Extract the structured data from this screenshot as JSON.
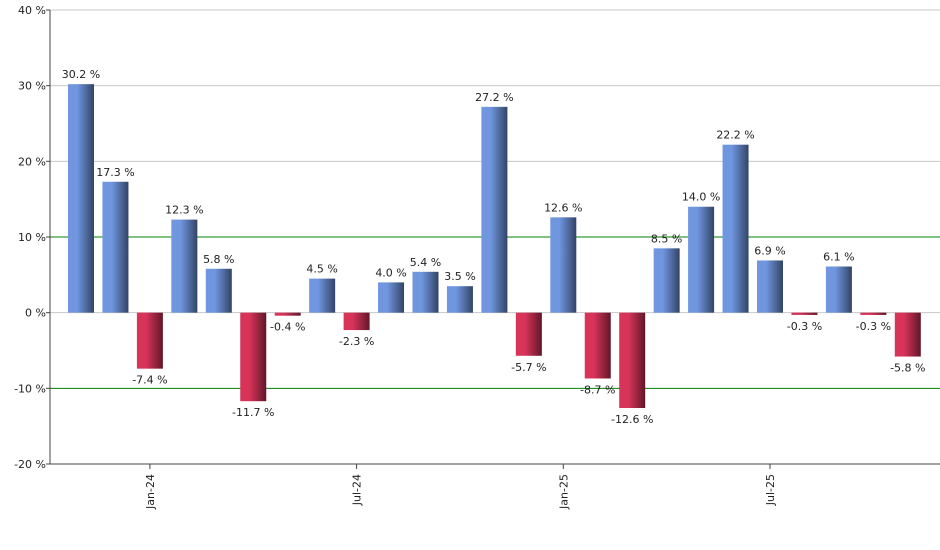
{
  "chart_data": {
    "type": "bar",
    "categories": [
      null,
      null,
      "Jan-24",
      null,
      null,
      null,
      null,
      null,
      "Jul-24",
      null,
      null,
      null,
      null,
      null,
      "Jan-25",
      null,
      null,
      null,
      null,
      null,
      "Jul-25",
      null,
      null,
      null,
      null
    ],
    "values": [
      30.2,
      17.3,
      -7.4,
      12.3,
      5.8,
      -11.7,
      -0.4,
      4.5,
      -2.3,
      4.0,
      5.4,
      3.5,
      27.2,
      -5.7,
      12.6,
      -8.7,
      -12.6,
      8.5,
      14.0,
      22.2,
      6.9,
      -0.3,
      6.1,
      -0.3,
      -5.8
    ],
    "value_labels": [
      "30.2 %",
      "17.3 %",
      "-7.4 %",
      "12.3 %",
      "5.8 %",
      "-11.7 %",
      "-0.4 %",
      "4.5 %",
      "-2.3 %",
      "4.0 %",
      "5.4 %",
      "3.5 %",
      "27.2 %",
      "-5.7 %",
      "12.6 %",
      "-8.7 %",
      "-12.6 %",
      "8.5 %",
      "14.0 %",
      "22.2 %",
      "6.9 %",
      "-0.3 %",
      "6.1 %",
      "-0.3 %",
      "-5.8 %"
    ],
    "positive_color": "#7096e0",
    "negative_color": "#d8345a",
    "ylim": [
      -20,
      40
    ],
    "yticks": [
      {
        "value": -20,
        "label": "-20 %"
      },
      {
        "value": -10,
        "label": "-10 %"
      },
      {
        "value": 0,
        "label": "0 %"
      },
      {
        "value": 10,
        "label": "10 %"
      },
      {
        "value": 20,
        "label": "20 %"
      },
      {
        "value": 30,
        "label": "30 %"
      },
      {
        "value": 40,
        "label": "40 %"
      }
    ],
    "grid": true,
    "highlight_lines": {
      "values": [
        10,
        -10
      ],
      "color": "#008000"
    }
  }
}
